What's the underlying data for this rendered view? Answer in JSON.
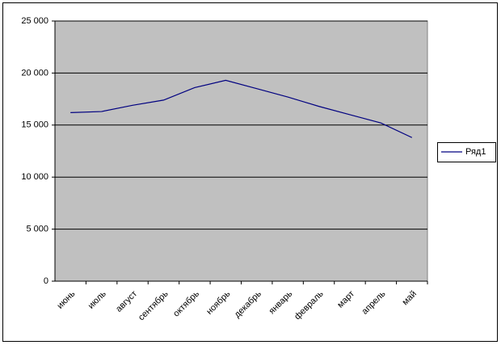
{
  "chart_data": {
    "type": "line",
    "categories": [
      "июнь",
      "июль",
      "август",
      "сентябрь",
      "октябрь",
      "ноябрь",
      "декабрь",
      "январь",
      "февраль",
      "март",
      "апрель",
      "май"
    ],
    "series": [
      {
        "name": "Ряд1",
        "color": "#000080",
        "values": [
          16200,
          16300,
          16900,
          17400,
          18600,
          19300,
          18500,
          17700,
          16800,
          16000,
          15200,
          13800
        ]
      }
    ],
    "ylim": [
      0,
      25000
    ],
    "yticks": [
      0,
      {
        "value": 5000,
        "label": "5 000"
      },
      {
        "value": 10000,
        "label": "10 000"
      },
      {
        "value": 15000,
        "label": "15 000"
      },
      {
        "value": 20000,
        "label": "20 000"
      },
      {
        "value": 25000,
        "label": "25 000"
      }
    ],
    "grid": true,
    "legend": "right"
  }
}
